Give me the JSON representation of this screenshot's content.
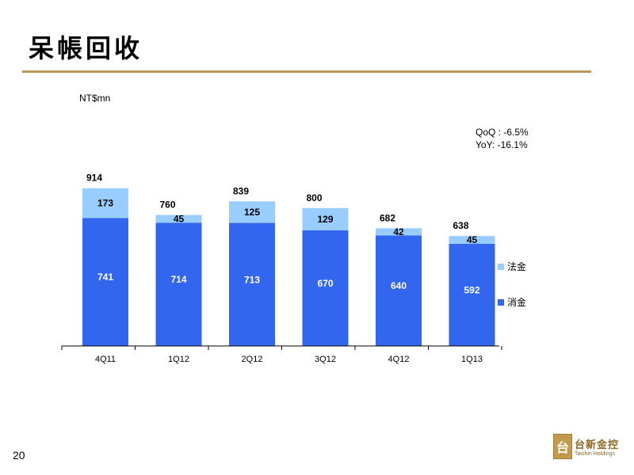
{
  "page": {
    "title": "呆帳回收",
    "unit": "NT$mn",
    "qoq": "QoQ : -6.5%",
    "yoy": "YoY: -16.1%",
    "page_number": "20"
  },
  "logo": {
    "mark": "台",
    "name_cn": "台新金控",
    "name_en": "Taishin Holdings"
  },
  "chart_data": {
    "type": "bar",
    "stacked": true,
    "categories": [
      "4Q11",
      "1Q12",
      "2Q12",
      "3Q12",
      "4Q12",
      "1Q13"
    ],
    "series": [
      {
        "name": "消金",
        "values": [
          741,
          714,
          713,
          670,
          640,
          592
        ],
        "color": "#3366ee"
      },
      {
        "name": "法金",
        "values": [
          173,
          45,
          125,
          129,
          42,
          45
        ],
        "color": "#99ccff"
      }
    ],
    "totals": [
      914,
      760,
      839,
      800,
      682,
      638
    ],
    "ylim": [
      0,
      1000
    ],
    "legend_position": "right",
    "grid": false
  }
}
